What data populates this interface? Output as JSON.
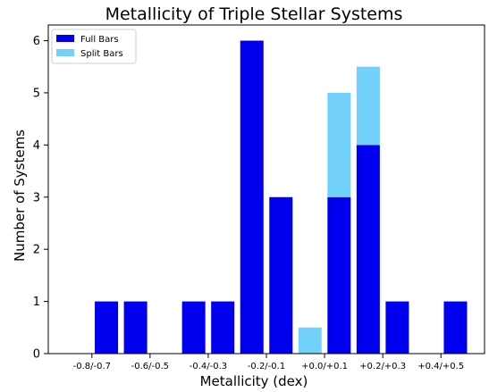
{
  "chart_data": {
    "type": "bar",
    "title": "Metallicity of Triple Stellar Systems",
    "xlabel": "Metallicity (dex)",
    "ylabel": "Number of Systems",
    "ylim": [
      0,
      6.3
    ],
    "yticks": [
      0,
      1,
      2,
      3,
      4,
      5,
      6
    ],
    "x_range": [
      -1,
      14
    ],
    "xticks": [
      {
        "pos": 0.5,
        "label": "-0.8/-0.7"
      },
      {
        "pos": 2.5,
        "label": "-0.6/-0.5"
      },
      {
        "pos": 4.5,
        "label": "-0.4/-0.3"
      },
      {
        "pos": 6.5,
        "label": "-0.2/-0.1"
      },
      {
        "pos": 8.5,
        "label": "+0.0/+0.1"
      },
      {
        "pos": 10.5,
        "label": "+0.2/+0.3"
      },
      {
        "pos": 12.5,
        "label": "+0.4/+0.5"
      }
    ],
    "bin_positions": [
      0,
      1,
      2,
      3,
      4,
      5,
      6,
      7,
      8,
      9,
      10,
      11,
      12,
      13
    ],
    "series": [
      {
        "name": "Full Bars",
        "color": "#0000ee",
        "values": [
          0,
          1,
          1,
          0,
          1,
          1,
          6,
          3,
          0,
          3,
          4,
          1,
          0,
          1
        ]
      },
      {
        "name": "Split Bars",
        "color": "#73d2fb",
        "values": [
          0,
          0,
          0,
          0,
          0,
          0,
          0,
          0,
          0.5,
          2,
          1.5,
          0,
          0,
          0
        ]
      }
    ],
    "legend_position": "top-left",
    "grid": false
  }
}
